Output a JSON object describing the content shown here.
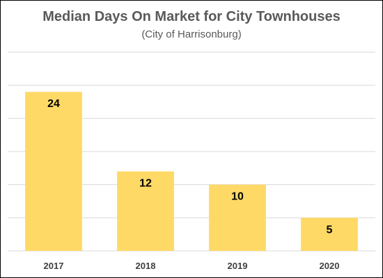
{
  "chart_data": {
    "type": "bar",
    "title": "Median Days On Market for City Townhouses",
    "subtitle": "(City of Harrisonburg)",
    "categories": [
      "2017",
      "2018",
      "2019",
      "2020"
    ],
    "values": [
      24,
      12,
      10,
      5
    ],
    "ylim": [
      0,
      30
    ],
    "grid": true,
    "legend": "none",
    "bar_color": "#ffd966"
  }
}
